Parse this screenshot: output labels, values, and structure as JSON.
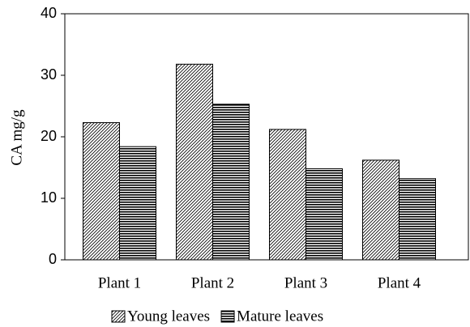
{
  "chart_data": {
    "type": "bar",
    "y_label": "CA mg/g",
    "categories": [
      "Plant 1",
      "Plant 2",
      "Plant 3",
      "Plant 4"
    ],
    "series": [
      {
        "name": "Young leaves",
        "color": "#000000",
        "hatch": "diagonal",
        "values": [
          22.3,
          31.8,
          21.2,
          16.2
        ]
      },
      {
        "name": "Mature leaves",
        "color": "#000000",
        "hatch": "horizontal",
        "values": [
          18.4,
          25.3,
          14.8,
          13.2
        ]
      }
    ],
    "ylim": [
      0,
      40
    ],
    "yticks": [
      0,
      10,
      20,
      30,
      40
    ],
    "legend": "bottom"
  }
}
